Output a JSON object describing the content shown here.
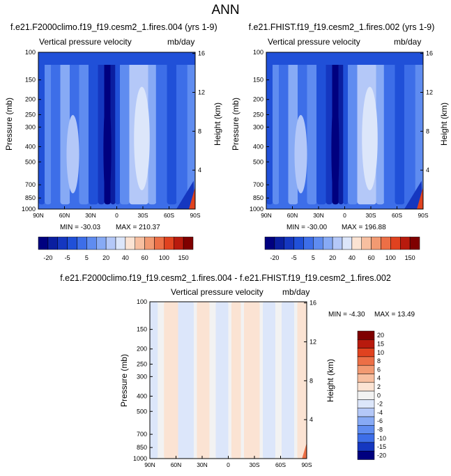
{
  "page_title": "ANN",
  "chart_data": [
    {
      "type": "heatmap",
      "title": "f.e21.F2000climo.f19_f19.cesm2_1.fires.004 (yrs 1-9)",
      "subtitle_left": "Vertical pressure velocity",
      "subtitle_right": "mb/day",
      "xlabel": "",
      "ylabel": "Pressure (mb)",
      "ylabel_right": "Height (km)",
      "x_ticks": [
        "90N",
        "60N",
        "30N",
        "0",
        "30S",
        "60S",
        "90S"
      ],
      "y_ticks": [
        "100",
        "150",
        "200",
        "250",
        "300",
        "400",
        "500",
        "700",
        "850",
        "1000"
      ],
      "y_right_ticks": [
        "16",
        "12",
        "8",
        "4"
      ],
      "min_label": "MIN = -30.03",
      "max_label": "MAX = 210.37",
      "colorbar_labels": [
        "-20",
        "-5",
        "5",
        "20",
        "40",
        "60",
        "100",
        "150"
      ],
      "grid": false,
      "y_scale": "log",
      "ylim": [
        1000,
        100
      ]
    },
    {
      "type": "heatmap",
      "title": "f.e21.FHIST.f19_f19.cesm2_1.fires.002 (yrs 1-9)",
      "subtitle_left": "Vertical pressure velocity",
      "subtitle_right": "mb/day",
      "xlabel": "",
      "ylabel": "Pressure (mb)",
      "ylabel_right": "Height (km)",
      "x_ticks": [
        "90N",
        "60N",
        "30N",
        "0",
        "30S",
        "60S",
        "90S"
      ],
      "y_ticks": [
        "100",
        "150",
        "200",
        "250",
        "300",
        "400",
        "500",
        "700",
        "850",
        "1000"
      ],
      "y_right_ticks": [
        "16",
        "12",
        "8",
        "4"
      ],
      "min_label": "MIN = -30.00",
      "max_label": "MAX = 196.88",
      "colorbar_labels": [
        "-20",
        "-5",
        "5",
        "20",
        "40",
        "60",
        "100",
        "150"
      ],
      "grid": false,
      "y_scale": "log",
      "ylim": [
        1000,
        100
      ]
    },
    {
      "type": "heatmap",
      "title": "f.e21.F2000climo.f19_f19.cesm2_1.fires.004 - f.e21.FHIST.f19_f19.cesm2_1.fires.002",
      "subtitle_left": "Vertical pressure velocity",
      "subtitle_right": "mb/day",
      "xlabel": "",
      "ylabel": "Pressure (mb)",
      "ylabel_right": "Height (km)",
      "x_ticks": [
        "90N",
        "60N",
        "30N",
        "0",
        "30S",
        "60S",
        "90S"
      ],
      "y_ticks": [
        "100",
        "150",
        "200",
        "250",
        "300",
        "400",
        "500",
        "700",
        "850",
        "1000"
      ],
      "y_right_ticks": [
        "16",
        "12",
        "8",
        "4"
      ],
      "min_label": "MIN = -4.30",
      "max_label": "MAX = 13.49",
      "colorbar_labels": [
        "20",
        "15",
        "10",
        "8",
        "6",
        "4",
        "2",
        "0",
        "-2",
        "-4",
        "-6",
        "-8",
        "-10",
        "-15",
        "-20"
      ],
      "grid": false,
      "y_scale": "log",
      "ylim": [
        1000,
        100
      ]
    }
  ],
  "colors": {
    "omega_scale": [
      "#00007f",
      "#0a1ea0",
      "#1537c0",
      "#2050d8",
      "#3d6ee8",
      "#5f8cf0",
      "#87aaf5",
      "#b4c8f8",
      "#dce6fa",
      "#fbe3d3",
      "#f7bfa0",
      "#f29a72",
      "#ec6f46",
      "#e0421f",
      "#b81a0d",
      "#7f0000"
    ],
    "diff_scale": [
      "#7f0000",
      "#b81a0d",
      "#e0421f",
      "#ec6f46",
      "#f29a72",
      "#f7bfa0",
      "#fbe3d3",
      "#f2f2f2",
      "#dce6fa",
      "#b4c8f8",
      "#87aaf5",
      "#5f8cf0",
      "#3d6ee8",
      "#1537c0",
      "#00007f"
    ]
  }
}
